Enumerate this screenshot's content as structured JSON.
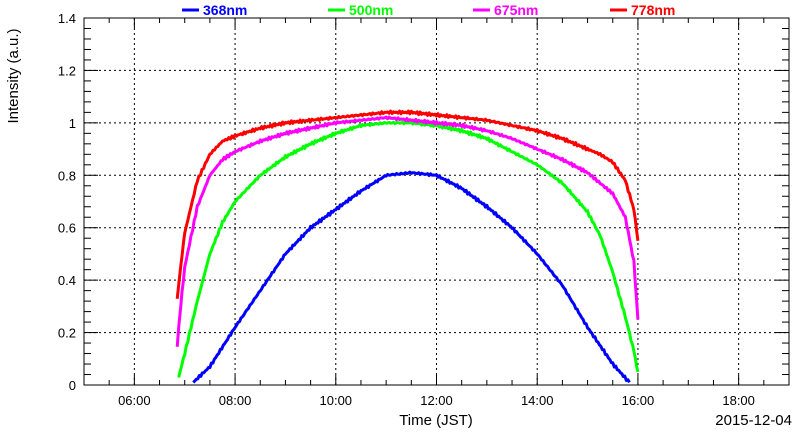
{
  "chart_data": {
    "type": "line",
    "title": "",
    "xlabel": "Time (JST)",
    "ylabel": "Intensity (a.u.)",
    "date_label": "2015-12-04",
    "x_unit": "hour of day (JST)",
    "xlim": [
      5.0,
      19.0
    ],
    "ylim": [
      0,
      1.4
    ],
    "x_ticks": [
      6,
      8,
      10,
      12,
      14,
      16,
      18
    ],
    "x_tick_labels": [
      "06:00",
      "08:00",
      "10:00",
      "12:00",
      "14:00",
      "16:00",
      "18:00"
    ],
    "y_ticks": [
      0,
      0.2,
      0.4,
      0.6,
      0.8,
      1.0,
      1.2,
      1.4
    ],
    "y_tick_labels": [
      "0",
      "0.2",
      "0.4",
      "0.6",
      "0.8",
      "1",
      "1.2",
      "1.4"
    ],
    "grid": true,
    "legend_position": "top",
    "series": [
      {
        "name": "368nm",
        "color": "#0000ff",
        "x": [
          7.17,
          7.5,
          8.0,
          8.5,
          9.0,
          9.5,
          10.0,
          10.5,
          11.0,
          11.5,
          12.0,
          12.5,
          13.0,
          13.5,
          14.0,
          14.5,
          15.0,
          15.5,
          15.83
        ],
        "y": [
          0.01,
          0.07,
          0.22,
          0.36,
          0.5,
          0.6,
          0.67,
          0.74,
          0.8,
          0.81,
          0.8,
          0.75,
          0.68,
          0.6,
          0.5,
          0.38,
          0.22,
          0.08,
          0.01
        ]
      },
      {
        "name": "500nm",
        "color": "#00ff00",
        "x": [
          6.88,
          7.0,
          7.25,
          7.5,
          7.75,
          8.0,
          8.5,
          9.0,
          9.5,
          10.0,
          10.5,
          11.0,
          11.5,
          12.0,
          12.5,
          13.0,
          13.5,
          14.0,
          14.5,
          15.0,
          15.25,
          15.5,
          15.75,
          15.92,
          16.0
        ],
        "y": [
          0.03,
          0.12,
          0.32,
          0.5,
          0.62,
          0.7,
          0.8,
          0.87,
          0.92,
          0.96,
          0.99,
          1.0,
          1.0,
          0.99,
          0.97,
          0.94,
          0.89,
          0.84,
          0.77,
          0.66,
          0.57,
          0.43,
          0.26,
          0.13,
          0.05
        ]
      },
      {
        "name": "675nm",
        "color": "#ff00ff",
        "x": [
          6.85,
          6.92,
          7.0,
          7.25,
          7.5,
          7.75,
          8.0,
          8.5,
          9.0,
          9.5,
          10.0,
          10.5,
          11.0,
          11.5,
          12.0,
          12.5,
          13.0,
          13.5,
          14.0,
          14.5,
          15.0,
          15.25,
          15.5,
          15.75,
          15.92,
          16.0
        ],
        "y": [
          0.15,
          0.3,
          0.45,
          0.68,
          0.8,
          0.86,
          0.89,
          0.93,
          0.96,
          0.98,
          1.0,
          1.01,
          1.02,
          1.01,
          1.0,
          0.99,
          0.97,
          0.94,
          0.9,
          0.86,
          0.81,
          0.77,
          0.73,
          0.64,
          0.47,
          0.25
        ]
      },
      {
        "name": "778nm",
        "color": "#ff0000",
        "x": [
          6.85,
          6.92,
          7.0,
          7.25,
          7.5,
          7.75,
          8.0,
          8.5,
          9.0,
          9.5,
          10.0,
          10.5,
          11.0,
          11.5,
          12.0,
          12.5,
          13.0,
          13.5,
          14.0,
          14.5,
          15.0,
          15.25,
          15.5,
          15.75,
          15.92,
          16.0
        ],
        "y": [
          0.33,
          0.45,
          0.58,
          0.78,
          0.88,
          0.93,
          0.95,
          0.98,
          1.0,
          1.01,
          1.02,
          1.03,
          1.04,
          1.04,
          1.03,
          1.02,
          1.01,
          0.99,
          0.97,
          0.94,
          0.9,
          0.88,
          0.85,
          0.78,
          0.67,
          0.55
        ]
      }
    ]
  }
}
